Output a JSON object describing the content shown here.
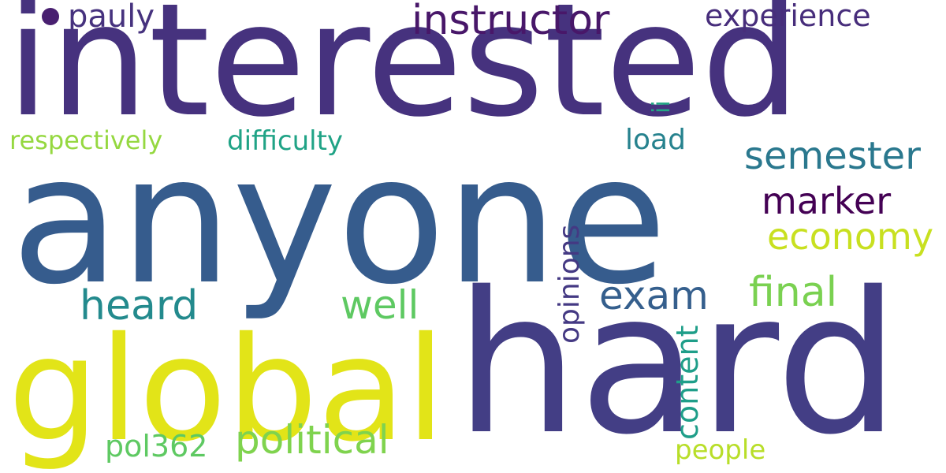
{
  "words": {
    "interested": {
      "text": "interested",
      "color": "#46327e"
    },
    "anyone": {
      "text": "anyone",
      "color": "#365c8d"
    },
    "hard": {
      "text": "hard",
      "color": "#433e85"
    },
    "global": {
      "text": "global",
      "color": "#e2e418"
    },
    "instructor": {
      "text": "instructor",
      "color": "#481769"
    },
    "pauly": {
      "text": "pauly",
      "color": "#46327e"
    },
    "experience": {
      "text": "experience",
      "color": "#472d7b"
    },
    "ii": {
      "text": "ii",
      "color": "#22a785"
    },
    "respectively": {
      "text": "respectively",
      "color": "#95d840"
    },
    "difficulty": {
      "text": "difficulty",
      "color": "#20a386"
    },
    "load": {
      "text": "load",
      "color": "#26828e"
    },
    "semester": {
      "text": "semester",
      "color": "#2a788e"
    },
    "marker": {
      "text": "marker",
      "color": "#440154"
    },
    "economy": {
      "text": "economy",
      "color": "#c8e020"
    },
    "opinions": {
      "text": "opinions",
      "color": "#443983"
    },
    "heard": {
      "text": "heard",
      "color": "#238a8d"
    },
    "exam": {
      "text": "exam",
      "color": "#355f8d"
    },
    "final": {
      "text": "final",
      "color": "#7ad151"
    },
    "well": {
      "text": "well",
      "color": "#5ec962"
    },
    "content": {
      "text": "content",
      "color": "#1f9e89"
    },
    "political": {
      "text": "political",
      "color": "#7fd34e"
    },
    "pol362": {
      "text": "pol362",
      "color": "#5ec962"
    },
    "people": {
      "text": "people",
      "color": "#b8de29"
    }
  },
  "dot_color": "#481f70"
}
